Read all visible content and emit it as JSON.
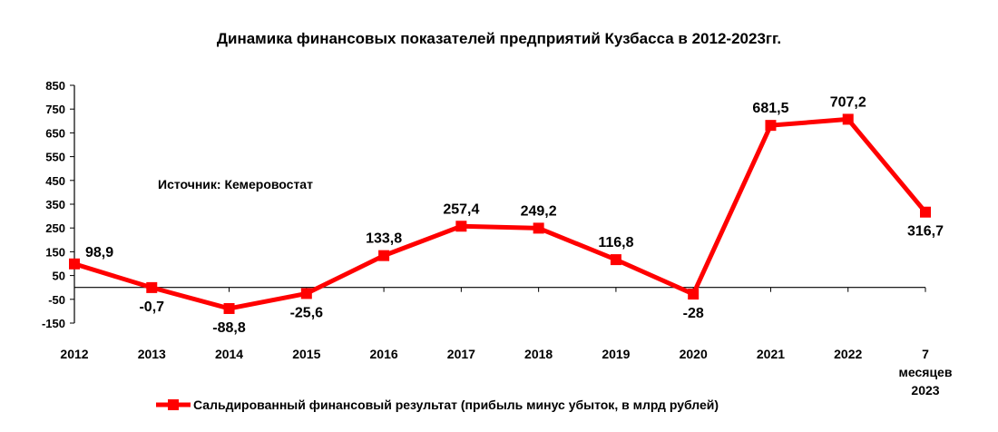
{
  "chart_data": {
    "type": "line",
    "title": "Динамика финансовых показателей предприятий Кузбасса в 2012-2023гг.",
    "annotation": "Источник: Кемеровостат",
    "categories": [
      [
        "2012"
      ],
      [
        "2013"
      ],
      [
        "2014"
      ],
      [
        "2015"
      ],
      [
        "2016"
      ],
      [
        "2017"
      ],
      [
        "2018"
      ],
      [
        "2019"
      ],
      [
        "2020"
      ],
      [
        "2021"
      ],
      [
        "2022"
      ],
      [
        "7",
        "месяцев",
        "2023"
      ]
    ],
    "ylim": [
      -150,
      850
    ],
    "yticks": [
      "850",
      "750",
      "650",
      "550",
      "450",
      "350",
      "250",
      "150",
      "50",
      "-50",
      "-150"
    ],
    "ytick_values": [
      850,
      750,
      650,
      550,
      450,
      350,
      250,
      150,
      50,
      -50,
      -150
    ],
    "series": [
      {
        "name": "Сальдированный финансовый результат (прибыль минус убыток, в млрд рублей)",
        "values": [
          98.9,
          -0.7,
          -88.8,
          -25.6,
          133.8,
          257.4,
          249.2,
          116.8,
          -28,
          681.5,
          707.2,
          316.7
        ],
        "labels": [
          "98,9",
          "-0,7",
          "-88,8",
          "-25,6",
          "133,8",
          "257,4",
          "249,2",
          "116,8",
          "-28",
          "681,5",
          "707,2",
          "316,7"
        ],
        "color": "#ff0000"
      }
    ],
    "legend_position": "bottom"
  }
}
